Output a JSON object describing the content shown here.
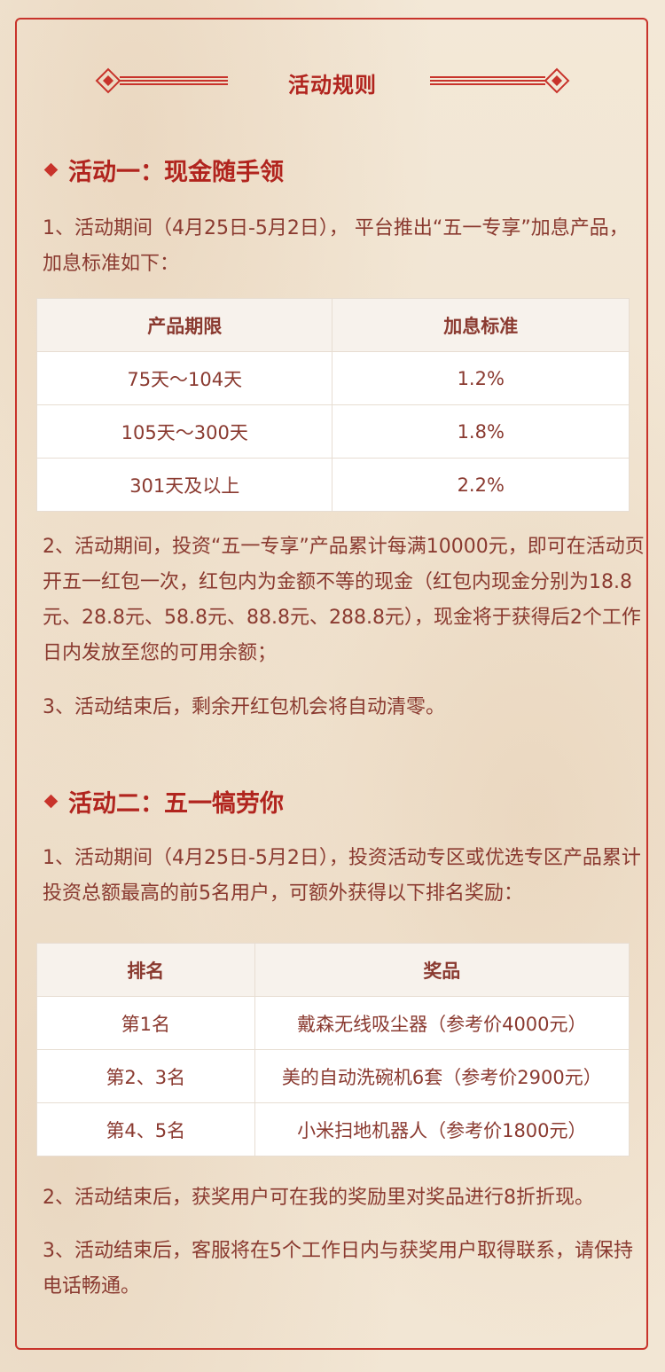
{
  "header": {
    "title": "活动规则"
  },
  "section1": {
    "title": "活动一：现金随手领",
    "p1": "1、活动期间（4月25日-5月2日）， 平台推出“五一专享”加息产品，加息标准如下：",
    "table": {
      "headers": [
        "产品期限",
        "加息标准"
      ],
      "rows": [
        [
          "75天～104天",
          "1.2%"
        ],
        [
          "105天～300天",
          "1.8%"
        ],
        [
          "301天及以上",
          "2.2%"
        ]
      ]
    },
    "p2": "2、活动期间，投资“五一专享”产品累计每满10000元，即可在活动页开五一红包一次，红包内为金额不等的现金（红包内现金分别为18.8元、28.8元、58.8元、88.8元、288.8元），现金将于获得后2个工作日内发放至您的可用余额；",
    "p3": "3、活动结束后，剩余开红包机会将自动清零。"
  },
  "section2": {
    "title": "活动二：五一犒劳你",
    "p1": "1、活动期间（4月25日-5月2日），投资活动专区或优选专区产品累计投资总额最高的前5名用户，可额外获得以下排名奖励：",
    "table": {
      "headers": [
        "排名",
        "奖品"
      ],
      "rows": [
        [
          "第1名",
          "戴森无线吸尘器（参考价4000元）"
        ],
        [
          "第2、3名",
          "美的自动洗碗机6套（参考价2900元）"
        ],
        [
          "第4、5名",
          "小米扫地机器人（参考价1800元）"
        ]
      ]
    },
    "p2": "2、活动结束后，获奖用户可在我的奖励里对奖品进行8折折现。",
    "p3": "3、活动结束后，客服将在5个工作日内与获奖用户取得联系，请保持电话畅通。"
  },
  "colors": {
    "accent": "#c8332b",
    "title": "#b1241e",
    "text": "#8a3a30",
    "background": "#f1e4d1"
  }
}
